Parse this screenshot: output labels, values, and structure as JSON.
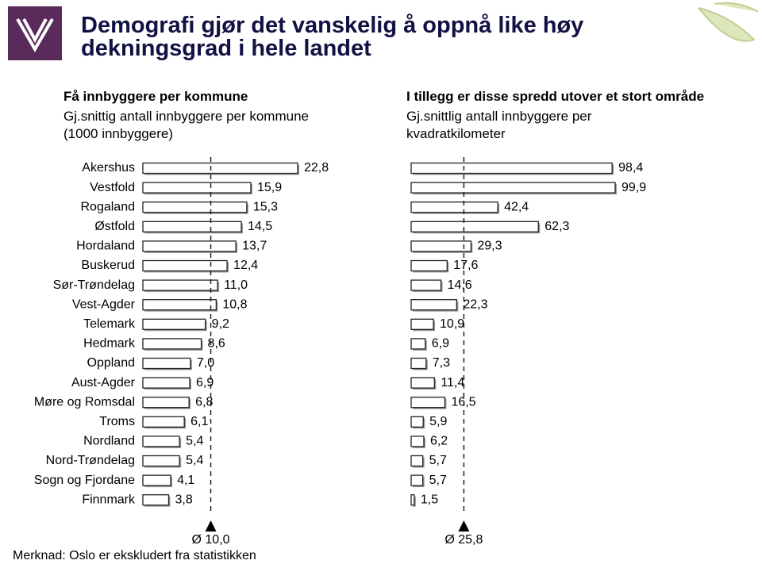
{
  "header": {
    "title": "Demografi gjør det vanskelig å oppnå like høy dekningsgrad i hele landet"
  },
  "note": "Merknad: Oslo er ekskludert fra statistikken",
  "chart_data": [
    {
      "type": "bar",
      "orientation": "horizontal",
      "title": "Få innbyggere per kommune",
      "subtitle": "Gj.snittig antall innbyggere per kommune (1000 innbyggere)",
      "categories": [
        "Akershus",
        "Vestfold",
        "Rogaland",
        "Østfold",
        "Hordaland",
        "Buskerud",
        "Sør-Trøndelag",
        "Vest-Agder",
        "Telemark",
        "Hedmark",
        "Oppland",
        "Aust-Agder",
        "Møre og Romsdal",
        "Troms",
        "Nordland",
        "Nord-Trøndelag",
        "Sogn og Fjordane",
        "Finnmark"
      ],
      "values": [
        22.8,
        15.9,
        15.3,
        14.5,
        13.7,
        12.4,
        11.0,
        10.8,
        9.2,
        8.6,
        7.0,
        6.9,
        6.8,
        6.1,
        5.4,
        5.4,
        4.1,
        3.8
      ],
      "value_labels": [
        "22,8",
        "15,9",
        "15,3",
        "14,5",
        "13,7",
        "12,4",
        "11,0",
        "10,8",
        "9,2",
        "8,6",
        "7,0",
        "6,9",
        "6,8",
        "6,1",
        "5,4",
        "5,4",
        "4,1",
        "3,8"
      ],
      "color": "#ffffff",
      "reference": {
        "value": 10.0,
        "label": "Ø 10,0"
      }
    },
    {
      "type": "bar",
      "orientation": "horizontal",
      "title": "I tillegg er disse spredd utover et stort område",
      "subtitle": "Gj.snittlig antall innbyggere per kvadratkilometer",
      "values": [
        98.4,
        99.9,
        42.4,
        62.3,
        29.3,
        17.6,
        14.6,
        22.3,
        10.9,
        6.9,
        7.3,
        11.4,
        16.5,
        5.9,
        6.2,
        5.7,
        5.7,
        1.5
      ],
      "value_labels": [
        "98,4",
        "99,9",
        "42,4",
        "62,3",
        "29,3",
        "17,6",
        "14,6",
        "22,3",
        "10,9",
        "6,9",
        "7,3",
        "11,4",
        "16,5",
        "5,9",
        "6,2",
        "5,7",
        "5,7",
        "1,5"
      ],
      "color": "#ffffff",
      "reference": {
        "value": 25.8,
        "label": "Ø 25,8"
      }
    }
  ]
}
